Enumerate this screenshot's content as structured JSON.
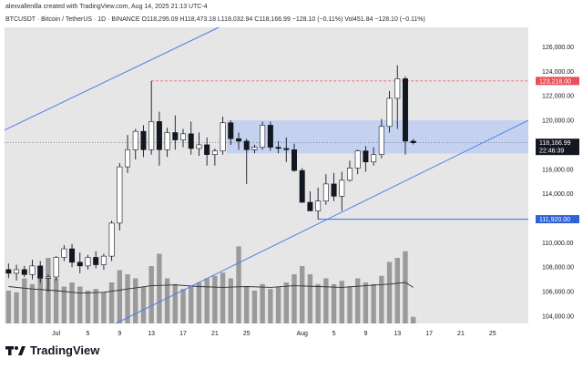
{
  "header": {
    "credit": "alexvallenilla created with TradingView.com, Aug 14, 2025 21:13 UTC-4",
    "ohlc": "BTCUSDT · Bitcoin / TetherUS · 1D · BINANCE  O118,295.09  H118,473.18  L118,032.94  C118,166.99  −128.10 (−0.11%)  Vol451.84  −128.10 (−0.11%)"
  },
  "brand": {
    "name": "TradingView",
    "logo_icon": "tradingview-logo-icon"
  },
  "colors": {
    "plot_bg": "#e6e6e6",
    "candle_body": "#ffffff",
    "candle_down": "#131722",
    "volume": "#9a9a9a",
    "trend_line": "#4d7fe8",
    "zone_fill": "#b8cbf3",
    "resistance": "#e8505a",
    "support": "#3a6fe0",
    "ma_line": "#2a2e39"
  },
  "chart_data": {
    "type": "candlestick",
    "symbol": "BTCUSDT",
    "timeframe": "1D",
    "exchange": "BINANCE",
    "y_axis": {
      "ticks": [
        "126,000.00",
        "124,000.00",
        "122,000.00",
        "120,000.00",
        "118,000.00",
        "116,000.00",
        "114,000.00",
        "112,000.00",
        "110,000.00",
        "108,000.00",
        "106,000.00",
        "104,000.00"
      ],
      "tick_values": [
        126000,
        124000,
        122000,
        120000,
        118000,
        116000,
        114000,
        112000,
        110000,
        108000,
        106000,
        104000
      ],
      "range": [
        103400,
        127600
      ]
    },
    "x_axis": {
      "ticks": [
        {
          "label": "Jul",
          "day": 1
        },
        {
          "label": "5",
          "day": 5
        },
        {
          "label": "9",
          "day": 9
        },
        {
          "label": "13",
          "day": 13
        },
        {
          "label": "17",
          "day": 17
        },
        {
          "label": "21",
          "day": 21
        },
        {
          "label": "25",
          "day": 25
        },
        {
          "label": "Aug",
          "day": 32
        },
        {
          "label": "5",
          "day": 36
        },
        {
          "label": "9",
          "day": 40
        },
        {
          "label": "13",
          "day": 44
        },
        {
          "label": "17",
          "day": 48
        },
        {
          "label": "21",
          "day": 52
        },
        {
          "label": "25",
          "day": 56
        }
      ],
      "range": [
        -5.5,
        60.5
      ]
    },
    "candles": [
      {
        "d": -5,
        "o": 107800,
        "h": 108300,
        "l": 107100,
        "c": 107500,
        "v": 40
      },
      {
        "d": -4,
        "o": 107500,
        "h": 108200,
        "l": 106900,
        "c": 107800,
        "v": 38
      },
      {
        "d": -3,
        "o": 107800,
        "h": 108100,
        "l": 107200,
        "c": 107400,
        "v": 55
      },
      {
        "d": -2,
        "o": 107400,
        "h": 108600,
        "l": 107000,
        "c": 108100,
        "v": 48
      },
      {
        "d": -1,
        "o": 108100,
        "h": 108500,
        "l": 106700,
        "c": 107100,
        "v": 62
      },
      {
        "d": 0,
        "o": 107100,
        "h": 107400,
        "l": 106000,
        "c": 107200,
        "v": 80
      },
      {
        "d": 1,
        "o": 107200,
        "h": 108900,
        "l": 106900,
        "c": 108800,
        "v": 55
      },
      {
        "d": 2,
        "o": 108800,
        "h": 109800,
        "l": 108500,
        "c": 109500,
        "v": 45
      },
      {
        "d": 3,
        "o": 109500,
        "h": 109900,
        "l": 108000,
        "c": 108400,
        "v": 50
      },
      {
        "d": 4,
        "o": 108400,
        "h": 109200,
        "l": 107500,
        "c": 108100,
        "v": 45
      },
      {
        "d": 5,
        "o": 108100,
        "h": 109000,
        "l": 107800,
        "c": 108800,
        "v": 40
      },
      {
        "d": 6,
        "o": 108800,
        "h": 109300,
        "l": 107900,
        "c": 108200,
        "v": 42
      },
      {
        "d": 7,
        "o": 108200,
        "h": 109100,
        "l": 107800,
        "c": 108900,
        "v": 38
      },
      {
        "d": 8,
        "o": 108900,
        "h": 111800,
        "l": 108500,
        "c": 111600,
        "v": 50
      },
      {
        "d": 9,
        "o": 111600,
        "h": 116500,
        "l": 111000,
        "c": 116200,
        "v": 65
      },
      {
        "d": 10,
        "o": 116200,
        "h": 118800,
        "l": 115700,
        "c": 117600,
        "v": 60
      },
      {
        "d": 11,
        "o": 117600,
        "h": 119300,
        "l": 116800,
        "c": 119100,
        "v": 55
      },
      {
        "d": 12,
        "o": 119100,
        "h": 119600,
        "l": 117000,
        "c": 117600,
        "v": 45
      },
      {
        "d": 13,
        "o": 117600,
        "h": 123218,
        "l": 117200,
        "c": 119900,
        "v": 70
      },
      {
        "d": 14,
        "o": 119900,
        "h": 120700,
        "l": 116300,
        "c": 117600,
        "v": 85
      },
      {
        "d": 15,
        "o": 117600,
        "h": 119400,
        "l": 117000,
        "c": 119000,
        "v": 55
      },
      {
        "d": 16,
        "o": 119000,
        "h": 120400,
        "l": 117600,
        "c": 118400,
        "v": 48
      },
      {
        "d": 17,
        "o": 118400,
        "h": 119300,
        "l": 117800,
        "c": 118900,
        "v": 42
      },
      {
        "d": 18,
        "o": 118900,
        "h": 119900,
        "l": 117200,
        "c": 117700,
        "v": 45
      },
      {
        "d": 19,
        "o": 117700,
        "h": 119000,
        "l": 117100,
        "c": 118000,
        "v": 50
      },
      {
        "d": 20,
        "o": 118000,
        "h": 118600,
        "l": 116300,
        "c": 117200,
        "v": 55
      },
      {
        "d": 21,
        "o": 117200,
        "h": 117700,
        "l": 116300,
        "c": 117500,
        "v": 58
      },
      {
        "d": 22,
        "o": 117500,
        "h": 120300,
        "l": 117200,
        "c": 119800,
        "v": 62
      },
      {
        "d": 23,
        "o": 119800,
        "h": 120000,
        "l": 118000,
        "c": 118500,
        "v": 55
      },
      {
        "d": 24,
        "o": 118500,
        "h": 119000,
        "l": 117600,
        "c": 118300,
        "v": 94
      },
      {
        "d": 25,
        "o": 118300,
        "h": 118500,
        "l": 114800,
        "c": 117600,
        "v": 45
      },
      {
        "d": 26,
        "o": 117600,
        "h": 118000,
        "l": 117300,
        "c": 117800,
        "v": 40
      },
      {
        "d": 27,
        "o": 117800,
        "h": 119900,
        "l": 117600,
        "c": 119600,
        "v": 48
      },
      {
        "d": 28,
        "o": 119600,
        "h": 119900,
        "l": 117500,
        "c": 117800,
        "v": 42
      },
      {
        "d": 29,
        "o": 117800,
        "h": 118300,
        "l": 117300,
        "c": 117700,
        "v": 45
      },
      {
        "d": 30,
        "o": 117700,
        "h": 118600,
        "l": 116600,
        "c": 117600,
        "v": 50
      },
      {
        "d": 31,
        "o": 117600,
        "h": 118100,
        "l": 115800,
        "c": 115900,
        "v": 60
      },
      {
        "d": 32,
        "o": 115900,
        "h": 116100,
        "l": 113400,
        "c": 113300,
        "v": 70
      },
      {
        "d": 33,
        "o": 113300,
        "h": 114200,
        "l": 112700,
        "c": 112600,
        "v": 60
      },
      {
        "d": 34,
        "o": 112600,
        "h": 114500,
        "l": 111920,
        "c": 113400,
        "v": 48
      },
      {
        "d": 35,
        "o": 113400,
        "h": 115600,
        "l": 113100,
        "c": 114800,
        "v": 55
      },
      {
        "d": 36,
        "o": 114800,
        "h": 115700,
        "l": 113400,
        "c": 113800,
        "v": 48
      },
      {
        "d": 37,
        "o": 113800,
        "h": 115800,
        "l": 112600,
        "c": 115100,
        "v": 52
      },
      {
        "d": 38,
        "o": 115100,
        "h": 116700,
        "l": 115000,
        "c": 116100,
        "v": 45
      },
      {
        "d": 39,
        "o": 116100,
        "h": 117600,
        "l": 115600,
        "c": 117500,
        "v": 55
      },
      {
        "d": 40,
        "o": 117500,
        "h": 117900,
        "l": 115800,
        "c": 116600,
        "v": 50
      },
      {
        "d": 41,
        "o": 116600,
        "h": 117800,
        "l": 116300,
        "c": 117200,
        "v": 48
      },
      {
        "d": 42,
        "o": 117200,
        "h": 120100,
        "l": 116900,
        "c": 119500,
        "v": 58
      },
      {
        "d": 43,
        "o": 119500,
        "h": 122400,
        "l": 119000,
        "c": 121800,
        "v": 75
      },
      {
        "d": 44,
        "o": 121800,
        "h": 124500,
        "l": 119300,
        "c": 123400,
        "v": 80
      },
      {
        "d": 45,
        "o": 123400,
        "h": 123600,
        "l": 117200,
        "c": 118300,
        "v": 88
      },
      {
        "d": 46,
        "o": 118300,
        "h": 118473.18,
        "l": 118032.94,
        "c": 118166.99,
        "v": 8
      }
    ],
    "volume_ma": [
      {
        "d": -5,
        "v": 45
      },
      {
        "d": -2,
        "v": 42
      },
      {
        "d": 1,
        "v": 40
      },
      {
        "d": 4,
        "v": 37
      },
      {
        "d": 7,
        "v": 38
      },
      {
        "d": 10,
        "v": 42
      },
      {
        "d": 13,
        "v": 46
      },
      {
        "d": 16,
        "v": 47
      },
      {
        "d": 19,
        "v": 45
      },
      {
        "d": 22,
        "v": 44
      },
      {
        "d": 25,
        "v": 45
      },
      {
        "d": 28,
        "v": 44
      },
      {
        "d": 31,
        "v": 46
      },
      {
        "d": 34,
        "v": 45
      },
      {
        "d": 37,
        "v": 44
      },
      {
        "d": 40,
        "v": 46
      },
      {
        "d": 43,
        "v": 48
      },
      {
        "d": 45,
        "v": 50
      },
      {
        "d": 46,
        "v": 44
      }
    ],
    "volume_max": 100,
    "upper_trend_line": [
      [
        -5.5,
        119200
      ],
      [
        21.5,
        127600
      ]
    ],
    "lower_trend_line": [
      [
        8.5,
        103400
      ],
      [
        60.5,
        120000
      ]
    ],
    "zone": {
      "d_start": 22.5,
      "d_end": 60.5,
      "y_low": 117300,
      "y_high": 120000
    },
    "resistance": {
      "value": 123218,
      "d_start": 13,
      "label": "123,218.00"
    },
    "support": {
      "value": 111920,
      "d_start": 34,
      "label": "111,920.00"
    },
    "last_price": {
      "value": 118166.99,
      "label": "118,166.99",
      "countdown": "22:46:39"
    }
  }
}
